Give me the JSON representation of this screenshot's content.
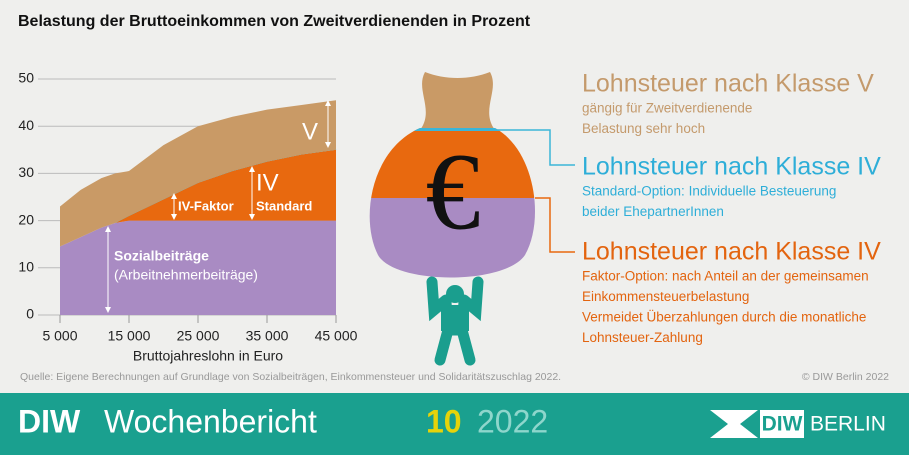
{
  "chart_data": {
    "type": "area",
    "title": "Belastung der Bruttoeinkommen von Zweitverdienenden in Prozent",
    "x": [
      5000,
      8000,
      11000,
      13000,
      15000,
      20000,
      25000,
      30000,
      35000,
      40000,
      45000
    ],
    "series": [
      {
        "color": "#a98bc3",
        "values": [
          14.5,
          16.5,
          18.5,
          19.5,
          20,
          20,
          20,
          20,
          20,
          20,
          20
        ]
      },
      {
        "color": "#e8690f",
        "values": [
          0,
          0,
          0,
          0,
          1,
          4.5,
          8,
          10.5,
          12.5,
          14,
          15
        ]
      },
      {
        "color": "#c99a66",
        "values": [
          8.5,
          10,
          10.5,
          10.5,
          9.5,
          11.5,
          12,
          11.5,
          11,
          10.5,
          10.5
        ]
      }
    ],
    "line_color": "#3bb5d8",
    "xlim": [
      5000,
      45000
    ],
    "xticks": [
      {
        "value": 5000,
        "label": "5 000"
      },
      {
        "value": 15000,
        "label": "15 000"
      },
      {
        "value": 25000,
        "label": "25 000"
      },
      {
        "value": 35000,
        "label": "35 000"
      },
      {
        "value": 45000,
        "label": "45 000"
      }
    ],
    "ylim": [
      0,
      50
    ],
    "yticks": [
      0,
      10,
      20,
      30,
      40,
      50
    ],
    "grid": true,
    "xlabel": "Bruttojahreslohn in Euro",
    "annotations": [
      "V",
      "IV",
      "Standard",
      "IV-Faktor",
      "Sozialbeiträge",
      "(Arbeitnehmerbeiträge)"
    ]
  },
  "bag_symbol": "€",
  "legend_blocks": [
    {
      "title": "Lohnsteuer nach Klasse V",
      "color": "#c49a6c",
      "lines": [
        "gängig für Zweitverdienende",
        "Belastung sehr hoch"
      ]
    },
    {
      "title": "Lohnsteuer nach Klasse IV",
      "color": "#2eaed8",
      "lines": [
        "Standard-Option: Individuelle Besteuerung",
        "beider EhepartnerInnen"
      ]
    },
    {
      "title": "Lohnsteuer nach Klasse IV",
      "color": "#e3640f",
      "lines": [
        "Faktor-Option: nach Anteil an der gemeinsamen",
        "Einkommensteuerbelastung",
        "Vermeidet Überzahlungen durch die monatliche",
        "Lohnsteuer-Zahlung"
      ]
    }
  ],
  "source": "Quelle: Eigene Berechnungen auf Grundlage von Sozialbeiträgen, Einkommensteuer und Solidaritätszuschlag 2022.",
  "copyright": "© DIW Berlin 2022",
  "footer": {
    "brand": "DIW",
    "publication": "Wochenbericht",
    "issue": "10",
    "year": "2022",
    "logo": "DIW",
    "logo_city": "BERLIN"
  }
}
